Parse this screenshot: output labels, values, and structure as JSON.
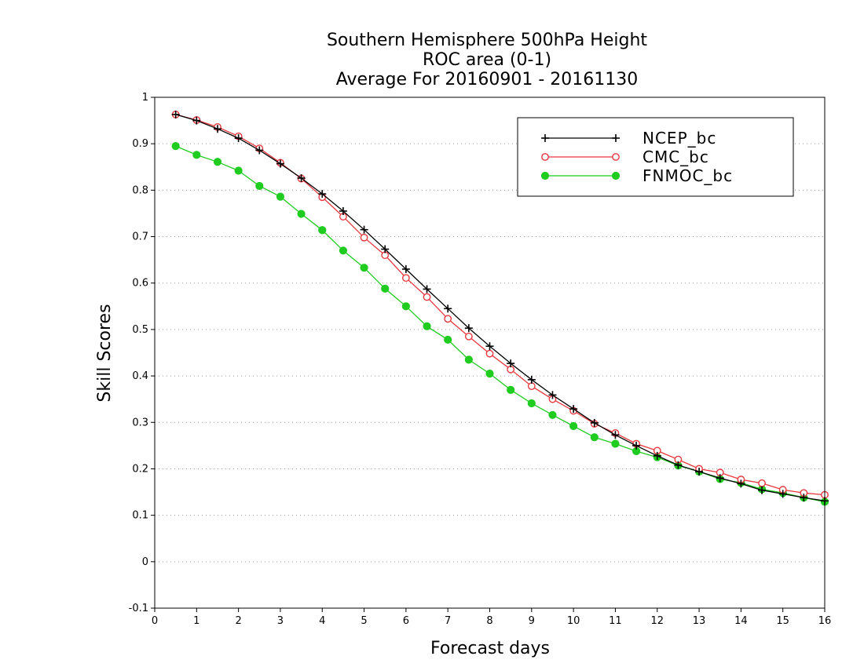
{
  "chart_data": {
    "type": "line",
    "title_lines": [
      "Southern Hemisphere 500hPa Height",
      "ROC area (0-1)",
      "Average For 20160901 - 20161130"
    ],
    "xlabel": "Forecast days",
    "ylabel": "Skill Scores",
    "xlim": [
      0,
      16
    ],
    "ylim": [
      -0.1,
      1
    ],
    "xticks": [
      0,
      1,
      2,
      3,
      4,
      5,
      6,
      7,
      8,
      9,
      10,
      11,
      12,
      13,
      14,
      15,
      16
    ],
    "yticks": [
      -0.1,
      0,
      0.1,
      0.2,
      0.3,
      0.4,
      0.5,
      0.6,
      0.7,
      0.8,
      0.9,
      1
    ],
    "ytick_labels": [
      "-0.1",
      "0",
      "0.1",
      "0.2",
      "0.3",
      "0.4",
      "0.5",
      "0.6",
      "0.7",
      "0.8",
      "0.9",
      "1"
    ],
    "grid": "horizontal dotted",
    "legend_position": "top-right",
    "x": [
      0.5,
      1,
      1.5,
      2,
      2.5,
      3,
      3.5,
      4,
      4.5,
      5,
      5.5,
      6,
      6.5,
      7,
      7.5,
      8,
      8.5,
      9,
      9.5,
      10,
      10.5,
      11,
      11.5,
      12,
      12.5,
      13,
      13.5,
      14,
      14.5,
      15,
      15.5,
      16
    ],
    "series": [
      {
        "name": "NCEP_bc",
        "color": "#000000",
        "marker": "plus",
        "values": [
          0.963,
          0.95,
          0.932,
          0.912,
          0.886,
          0.857,
          0.826,
          0.792,
          0.755,
          0.715,
          0.673,
          0.63,
          0.587,
          0.545,
          0.503,
          0.464,
          0.427,
          0.392,
          0.359,
          0.329,
          0.299,
          0.273,
          0.25,
          0.228,
          0.208,
          0.194,
          0.18,
          0.168,
          0.154,
          0.146,
          0.138,
          0.131
        ]
      },
      {
        "name": "CMC_bc",
        "color": "#e8383d",
        "marker": "open-circle",
        "values": [
          0.963,
          0.951,
          0.936,
          0.916,
          0.89,
          0.859,
          0.825,
          0.785,
          0.743,
          0.698,
          0.66,
          0.611,
          0.57,
          0.523,
          0.485,
          0.448,
          0.414,
          0.378,
          0.35,
          0.325,
          0.297,
          0.277,
          0.254,
          0.239,
          0.22,
          0.2,
          0.192,
          0.177,
          0.169,
          0.155,
          0.148,
          0.144
        ]
      },
      {
        "name": "FNMOC_bc",
        "color": "#1fcc1f",
        "marker": "filled-circle",
        "values": [
          0.895,
          0.876,
          0.861,
          0.842,
          0.809,
          0.786,
          0.749,
          0.714,
          0.67,
          0.633,
          0.588,
          0.55,
          0.507,
          0.478,
          0.435,
          0.405,
          0.37,
          0.341,
          0.316,
          0.292,
          0.268,
          0.254,
          0.238,
          0.225,
          0.207,
          0.194,
          0.178,
          0.17,
          0.156,
          0.148,
          0.138,
          0.129
        ]
      }
    ]
  }
}
